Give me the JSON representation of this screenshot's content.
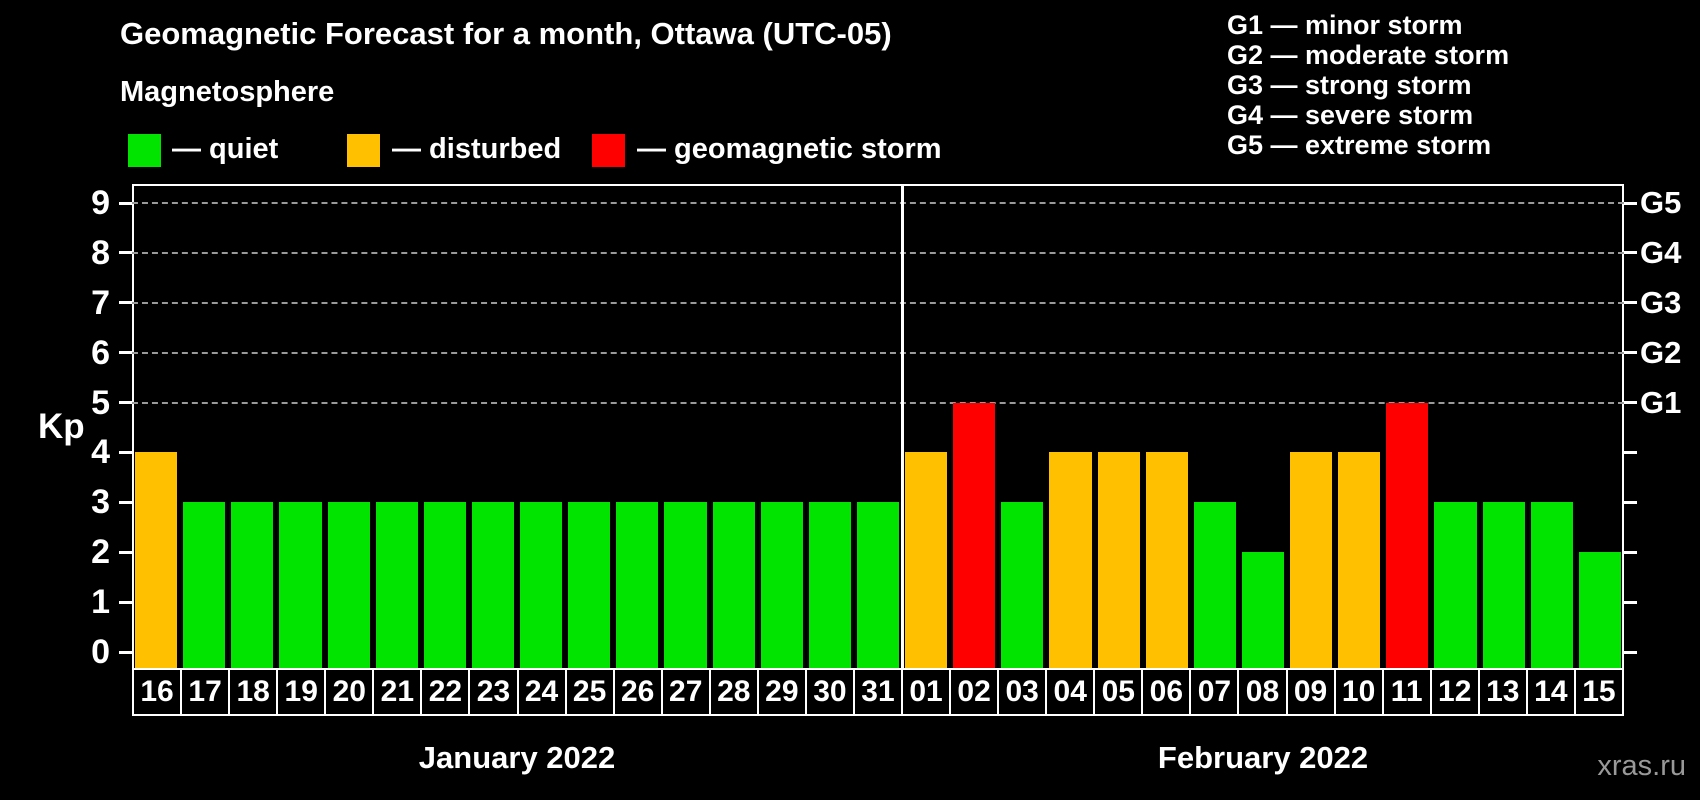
{
  "watermark": "xras.ru",
  "legend": {
    "items": [
      {
        "status": "quiet",
        "label": "— quiet",
        "color": "#00e400"
      },
      {
        "status": "disturbed",
        "label": "— disturbed",
        "color": "#ffc000"
      },
      {
        "status": "storm",
        "label": "— geomagnetic storm",
        "color": "#ff0000"
      }
    ]
  },
  "g_legend": [
    "G1 — minor storm",
    "G2 — moderate storm",
    "G3 — strong storm",
    "G4 — severe storm",
    "G5 — extreme storm"
  ],
  "axis": {
    "kp_label": "Kp",
    "kp_ticks": [
      "0",
      "1",
      "2",
      "3",
      "4",
      "5",
      "6",
      "7",
      "8",
      "9"
    ],
    "g_levels": [
      {
        "kp": 5,
        "label": "G1"
      },
      {
        "kp": 6,
        "label": "G2"
      },
      {
        "kp": 7,
        "label": "G3"
      },
      {
        "kp": 8,
        "label": "G4"
      },
      {
        "kp": 9,
        "label": "G5"
      }
    ]
  },
  "chart_data": {
    "type": "bar",
    "title": "Geomagnetic Forecast for a month, Ottawa (UTC-05)",
    "subtitle": "Magnetosphere",
    "ylabel": "Kp",
    "ylim": [
      0,
      9
    ],
    "grid": "dashed horizontal lines at Kp 5-9 (G1-G5)",
    "status_colors": {
      "quiet": "#00e400",
      "disturbed": "#ffc000",
      "storm": "#ff0000"
    },
    "months": [
      {
        "label": "January 2022",
        "count": 16
      },
      {
        "label": "February 2022",
        "count": 15
      }
    ],
    "bars": [
      {
        "day": "16",
        "kp": 4,
        "status": "disturbed"
      },
      {
        "day": "17",
        "kp": 3,
        "status": "quiet"
      },
      {
        "day": "18",
        "kp": 3,
        "status": "quiet"
      },
      {
        "day": "19",
        "kp": 3,
        "status": "quiet"
      },
      {
        "day": "20",
        "kp": 3,
        "status": "quiet"
      },
      {
        "day": "21",
        "kp": 3,
        "status": "quiet"
      },
      {
        "day": "22",
        "kp": 3,
        "status": "quiet"
      },
      {
        "day": "23",
        "kp": 3,
        "status": "quiet"
      },
      {
        "day": "24",
        "kp": 3,
        "status": "quiet"
      },
      {
        "day": "25",
        "kp": 3,
        "status": "quiet"
      },
      {
        "day": "26",
        "kp": 3,
        "status": "quiet"
      },
      {
        "day": "27",
        "kp": 3,
        "status": "quiet"
      },
      {
        "day": "28",
        "kp": 3,
        "status": "quiet"
      },
      {
        "day": "29",
        "kp": 3,
        "status": "quiet"
      },
      {
        "day": "30",
        "kp": 3,
        "status": "quiet"
      },
      {
        "day": "31",
        "kp": 3,
        "status": "quiet"
      },
      {
        "day": "01",
        "kp": 4,
        "status": "disturbed"
      },
      {
        "day": "02",
        "kp": 5,
        "status": "storm"
      },
      {
        "day": "03",
        "kp": 3,
        "status": "quiet"
      },
      {
        "day": "04",
        "kp": 4,
        "status": "disturbed"
      },
      {
        "day": "05",
        "kp": 4,
        "status": "disturbed"
      },
      {
        "day": "06",
        "kp": 4,
        "status": "disturbed"
      },
      {
        "day": "07",
        "kp": 3,
        "status": "quiet"
      },
      {
        "day": "08",
        "kp": 2,
        "status": "quiet"
      },
      {
        "day": "09",
        "kp": 4,
        "status": "disturbed"
      },
      {
        "day": "10",
        "kp": 4,
        "status": "disturbed"
      },
      {
        "day": "11",
        "kp": 5,
        "status": "storm"
      },
      {
        "day": "12",
        "kp": 3,
        "status": "quiet"
      },
      {
        "day": "13",
        "kp": 3,
        "status": "quiet"
      },
      {
        "day": "14",
        "kp": 3,
        "status": "quiet"
      },
      {
        "day": "15",
        "kp": 2,
        "status": "quiet"
      }
    ]
  }
}
